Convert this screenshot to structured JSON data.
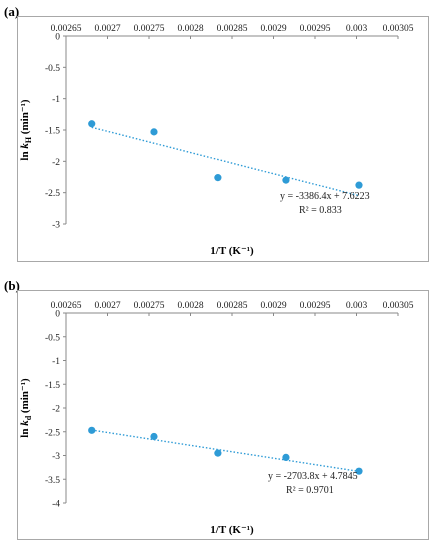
{
  "chart_data": [
    {
      "panel_label": "(a)",
      "type": "scatter",
      "xlabel": "1/T (K⁻¹)",
      "ylabel": {
        "prefix": "ln ",
        "var": "k",
        "sub": "H",
        "suffix": " (min⁻¹)"
      },
      "xlim": [
        0.00265,
        0.00305
      ],
      "ylim": [
        -3,
        0
      ],
      "x_axis_position": "top",
      "x_ticks": [
        "0.00265",
        "0.0027",
        "0.00275",
        "0.0028",
        "0.00285",
        "0.0029",
        "0.00295",
        "0.003",
        "0.00305"
      ],
      "y_ticks": [
        "0",
        "-0.5",
        "-1",
        "-1.5",
        "-2",
        "-2.5",
        "-3"
      ],
      "grid": false,
      "points": [
        {
          "x": 0.002681,
          "y": -1.4
        },
        {
          "x": 0.002756,
          "y": -1.53
        },
        {
          "x": 0.002833,
          "y": -2.26
        },
        {
          "x": 0.002915,
          "y": -2.3
        },
        {
          "x": 0.003003,
          "y": -2.38
        }
      ],
      "trendline": {
        "slope": -3386.4,
        "intercept": 7.6223,
        "x_range": [
          0.002681,
          0.003003
        ]
      },
      "equation": "y = -3386.4x + 7.6223",
      "r2": "R² = 0.833",
      "color": "#2e9bd6"
    },
    {
      "panel_label": "(b)",
      "type": "scatter",
      "xlabel": "1/T (K⁻¹)",
      "ylabel": {
        "prefix": "ln ",
        "var": "k",
        "sub": "d",
        "suffix": " (min⁻¹)"
      },
      "xlim": [
        0.00265,
        0.00305
      ],
      "ylim": [
        -4,
        0
      ],
      "x_axis_position": "top",
      "x_ticks": [
        "0.00265",
        "0.0027",
        "0.00275",
        "0.0028",
        "0.00285",
        "0.0029",
        "0.00295",
        "0.003",
        "0.00305"
      ],
      "y_ticks": [
        "0",
        "-0.5",
        "-1",
        "-1.5",
        "-2",
        "-2.5",
        "-3",
        "-3.5",
        "-4"
      ],
      "grid": false,
      "points": [
        {
          "x": 0.002681,
          "y": -2.47
        },
        {
          "x": 0.002756,
          "y": -2.6
        },
        {
          "x": 0.002833,
          "y": -2.95
        },
        {
          "x": 0.002915,
          "y": -3.04
        },
        {
          "x": 0.003003,
          "y": -3.33
        }
      ],
      "trendline": {
        "slope": -2703.8,
        "intercept": 4.7845,
        "x_range": [
          0.002681,
          0.003003
        ]
      },
      "equation": "y = -2703.8x + 4.7845",
      "r2": "R² = 0.9701",
      "color": "#2e9bd6"
    }
  ]
}
